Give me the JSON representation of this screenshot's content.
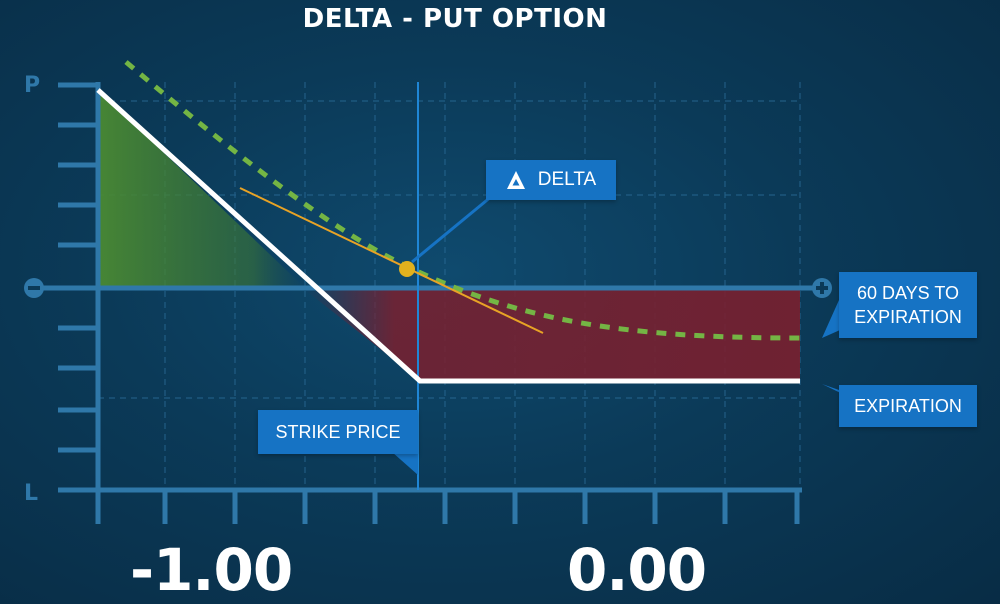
{
  "title": "DELTA - PUT OPTION",
  "y_axis": {
    "top_label": "P",
    "bottom_label": "L"
  },
  "x_axis": {
    "left_label": "-1.00",
    "right_label": "0.00"
  },
  "callouts": {
    "delta": "DELTA",
    "days_line1": "60 DAYS TO",
    "days_line2": "EXPIRATION",
    "expiration": "EXPIRATION",
    "strike": "STRIKE PRICE"
  },
  "icons": {
    "minus_marker": "minus-circle-icon",
    "plus_marker": "plus-circle-icon",
    "delta_symbol": "triangle-icon"
  },
  "colors": {
    "axis": "#2f78a9",
    "grid": "#2a6b96",
    "payoff_line": "#ffffff",
    "time_value_line": "#74b544",
    "tangent_line": "#e8a325",
    "delta_point": "#e2b11e",
    "profit_area": "#4a8a33",
    "loss_area": "#7a1f2e",
    "callout_bg": "#1673c4"
  }
}
